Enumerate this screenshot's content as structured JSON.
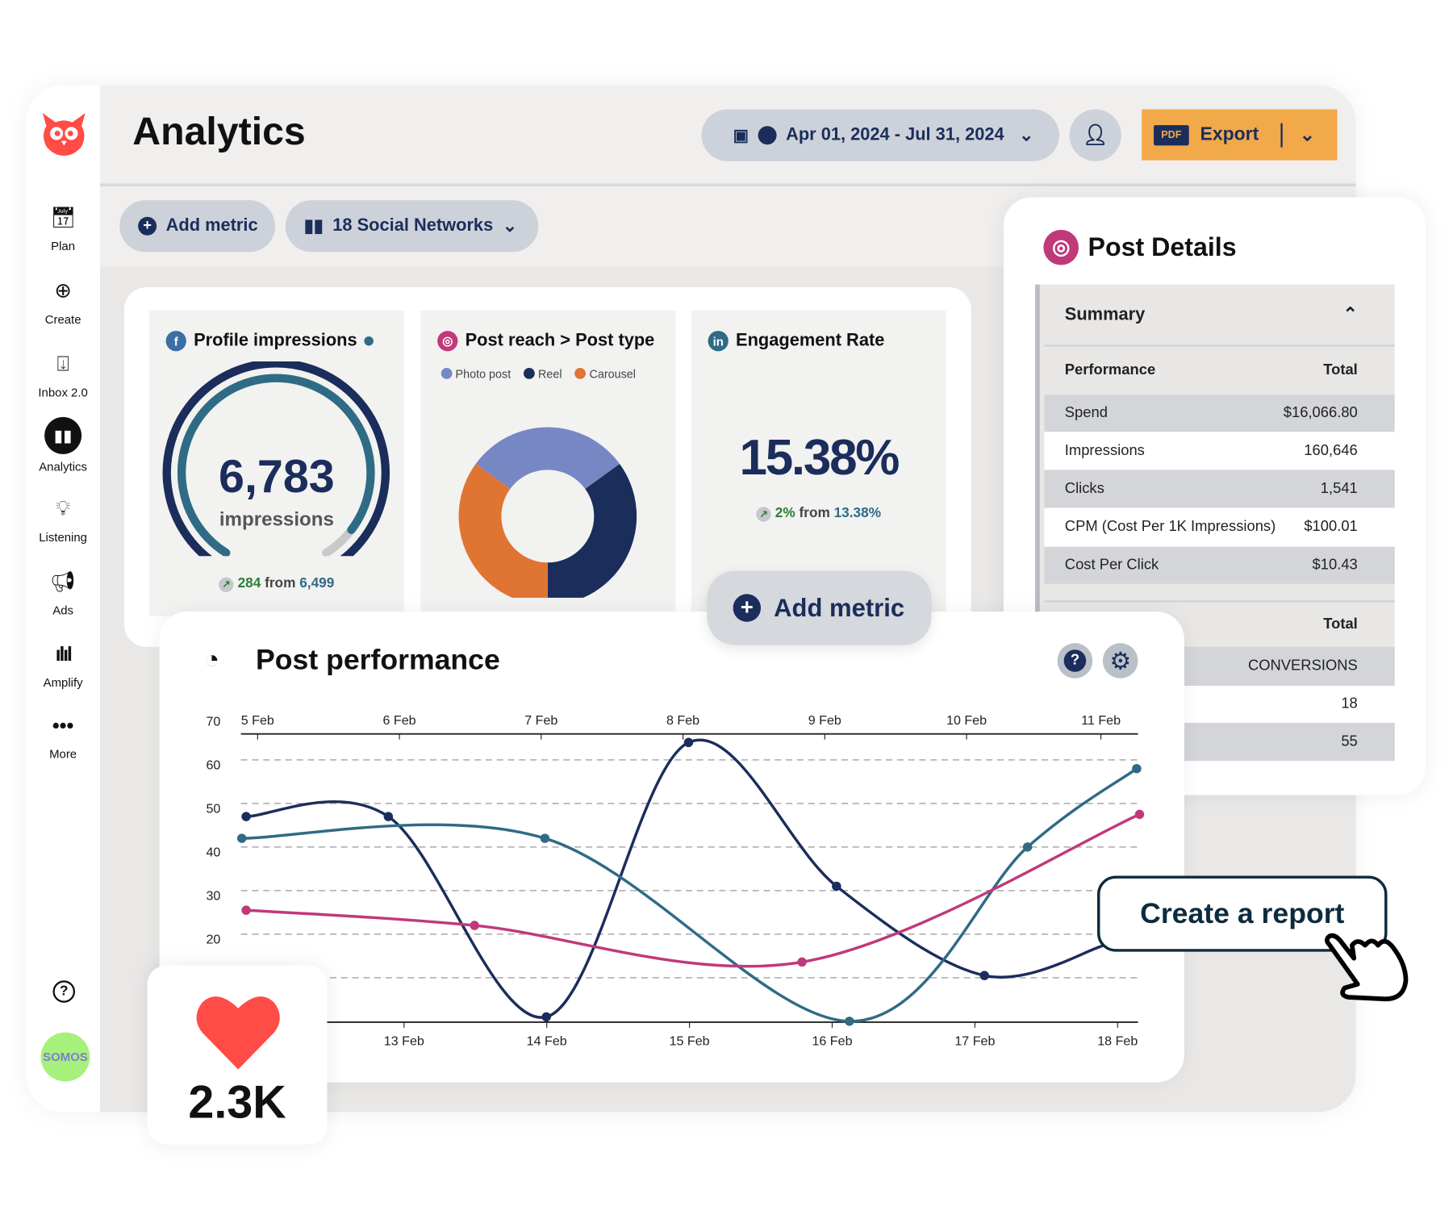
{
  "sidebar": {
    "items": [
      {
        "label": "Plan",
        "icon": "calendar-icon"
      },
      {
        "label": "Create",
        "icon": "plus-circle-icon"
      },
      {
        "label": "Inbox 2.0",
        "icon": "inbox-icon"
      },
      {
        "label": "Analytics",
        "icon": "bar-chart-icon",
        "active": true
      },
      {
        "label": "Listening",
        "icon": "lightbulb-icon"
      },
      {
        "label": "Ads",
        "icon": "megaphone-icon"
      },
      {
        "label": "Amplify",
        "icon": "amplify-icon"
      },
      {
        "label": "More",
        "icon": "more-icon"
      }
    ],
    "avatar": "SOMOS",
    "avatar_color": "#a8f07c"
  },
  "header": {
    "title": "Analytics",
    "date_range": "Apr 01, 2024 - Jul 31, 2024",
    "export_badge": "PDF",
    "export_label": "Export",
    "export_color": "#f2a94a"
  },
  "toolbar": {
    "add_metric": "Add metric",
    "networks": "18 Social Networks"
  },
  "cards": {
    "impressions": {
      "title": "Profile impressions",
      "value": "6,783",
      "unit": "impressions",
      "change": "284",
      "from_label": "from",
      "previous": "6,499",
      "gauge_fill": 0.93
    },
    "post_reach": {
      "title": "Post reach > Post type",
      "legend": [
        {
          "name": "Photo post",
          "color": "#7787c4",
          "value": 30
        },
        {
          "name": "Reel",
          "color": "#1b2d5b",
          "value": 35
        },
        {
          "name": "Carousel",
          "color": "#e07432",
          "value": 35
        }
      ]
    },
    "engagement": {
      "title": "Engagement Rate",
      "value": "15.38%",
      "change": "2%",
      "from_label": "from",
      "previous": "13.38%"
    },
    "add_metric": "Add metric"
  },
  "post_details": {
    "title": "Post Details",
    "summary": "Summary",
    "header": {
      "label": "Performance",
      "total": "Total"
    },
    "rows": [
      {
        "label": "Spend",
        "value": "$16,066.80"
      },
      {
        "label": "Impressions",
        "value": "160,646"
      },
      {
        "label": "Clicks",
        "value": "1,541"
      },
      {
        "label": "CPM (Cost Per 1K Impressions)",
        "value": "$100.01"
      },
      {
        "label": "Cost Per Click",
        "value": "$10.43"
      }
    ],
    "section2": {
      "total": "Total",
      "col": "CONVERSIONS",
      "values": [
        "18",
        "55"
      ]
    }
  },
  "post_performance": {
    "title": "Post performance"
  },
  "chart_data": {
    "type": "line",
    "ylim": [
      0,
      70
    ],
    "yticks": [
      70,
      60,
      50,
      40,
      30,
      20
    ],
    "grid": true,
    "x_top_labels": [
      "5 Feb",
      "6 Feb",
      "7 Feb",
      "8 Feb",
      "9 Feb",
      "10 Feb",
      "11 Feb"
    ],
    "x_bottom_labels": [
      "13 Feb",
      "14 Feb",
      "15 Feb",
      "16 Feb",
      "17 Feb",
      "18 Feb"
    ],
    "series": [
      {
        "color": "#1b2d5b",
        "points": [
          [
            4.92,
            47
          ],
          [
            5.91,
            47
          ],
          [
            7.01,
            1
          ],
          [
            8.0,
            64
          ],
          [
            9.03,
            31
          ],
          [
            10.06,
            10.5
          ],
          [
            10.9,
            17.5
          ]
        ],
        "markers": [
          0,
          1,
          2,
          3,
          4,
          5
        ]
      },
      {
        "color": "#2f6b85",
        "points": [
          [
            4.89,
            42
          ],
          [
            7.0,
            42
          ],
          [
            9.12,
            0
          ],
          [
            10.36,
            40
          ],
          [
            11.12,
            58
          ]
        ],
        "markers": [
          0,
          1,
          2,
          3,
          4
        ]
      },
      {
        "color": "#c0397a",
        "points": [
          [
            4.92,
            25.5
          ],
          [
            6.51,
            22
          ],
          [
            8.79,
            13.6
          ],
          [
            11.14,
            47.5
          ]
        ],
        "markers": [
          0,
          1,
          2,
          3
        ]
      }
    ]
  },
  "likes": {
    "value": "2.3K"
  },
  "cta": {
    "label": "Create a report"
  }
}
